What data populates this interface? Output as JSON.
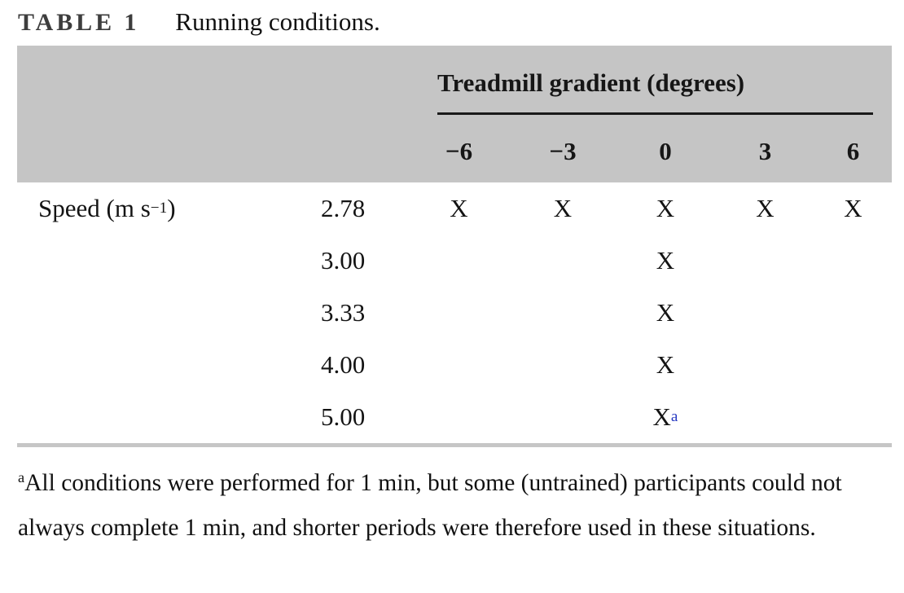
{
  "title": {
    "label": "TABLE 1",
    "caption": "Running conditions."
  },
  "table": {
    "group_header": "Treadmill gradient (degrees)",
    "gradient_columns": [
      "−6",
      "−3",
      "0",
      "3",
      "6"
    ],
    "row_header": {
      "pre": "Speed (m s",
      "sup": "−1",
      "post": ")"
    },
    "rows": [
      {
        "speed": "2.78",
        "marks": [
          "X",
          "X",
          "X",
          "X",
          "X"
        ]
      },
      {
        "speed": "3.00",
        "marks": [
          "",
          "",
          "X",
          "",
          ""
        ]
      },
      {
        "speed": "3.33",
        "marks": [
          "",
          "",
          "X",
          "",
          ""
        ]
      },
      {
        "speed": "4.00",
        "marks": [
          "",
          "",
          "X",
          "",
          ""
        ]
      },
      {
        "speed": "5.00",
        "marks": [
          "",
          "",
          "X",
          "",
          ""
        ],
        "note_marker": "a",
        "note_column": "0"
      }
    ]
  },
  "footnote": {
    "marker": "a",
    "text": "All conditions were performed for 1 min, but some (untrained) participants could not always complete 1 min, and shorter periods were therefore used in these situations."
  },
  "colors": {
    "header_background": "#c5c5c5",
    "header_rule": "#1a1a1a",
    "bottom_rule": "#c6c6c6",
    "table_label": "#3d3d3d",
    "body_text": "#141414",
    "note_marker_blue": "#2639c2"
  }
}
